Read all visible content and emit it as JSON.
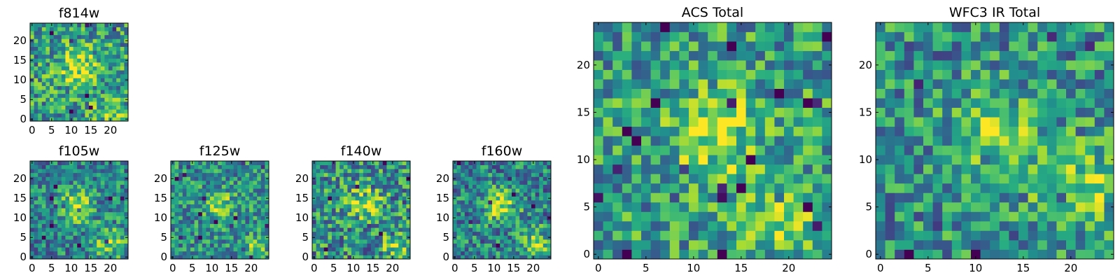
{
  "chart_data": [
    {
      "type": "heatmap",
      "title": "f814w",
      "xticks": [
        "0",
        "5",
        "10",
        "15",
        "20"
      ],
      "yticks": [
        "0",
        "5",
        "10",
        "15",
        "20"
      ],
      "xlim": [
        0,
        24
      ],
      "ylim": [
        0,
        24
      ],
      "grid_size": 25,
      "colormap": "viridis",
      "seed": 11,
      "blobs": [
        {
          "cx": 12,
          "cy": 13,
          "amp": 0.35,
          "s": 3.5
        },
        {
          "cx": 20,
          "cy": 2,
          "amp": 0.25,
          "s": 2.5
        }
      ],
      "base": 0.55,
      "noise": 0.32
    },
    {
      "type": "heatmap",
      "title": "f105w",
      "xticks": [
        "0",
        "5",
        "10",
        "15",
        "20"
      ],
      "yticks": [
        "0",
        "5",
        "10",
        "15",
        "20"
      ],
      "xlim": [
        0,
        24
      ],
      "ylim": [
        0,
        24
      ],
      "grid_size": 25,
      "colormap": "viridis",
      "seed": 23,
      "blobs": [
        {
          "cx": 11,
          "cy": 13,
          "amp": 0.45,
          "s": 3.0
        },
        {
          "cx": 20,
          "cy": 4,
          "amp": 0.35,
          "s": 3.0
        }
      ],
      "base": 0.45,
      "noise": 0.28
    },
    {
      "type": "heatmap",
      "title": "f125w",
      "xticks": [
        "0",
        "5",
        "10",
        "15",
        "20"
      ],
      "yticks": [
        "0",
        "5",
        "10",
        "15",
        "20"
      ],
      "xlim": [
        0,
        24
      ],
      "ylim": [
        0,
        24
      ],
      "grid_size": 25,
      "colormap": "viridis",
      "seed": 37,
      "blobs": [
        {
          "cx": 12,
          "cy": 13,
          "amp": 0.35,
          "s": 2.5
        },
        {
          "cx": 21,
          "cy": 2,
          "amp": 0.3,
          "s": 2.0
        }
      ],
      "base": 0.5,
      "noise": 0.28
    },
    {
      "type": "heatmap",
      "title": "f140w",
      "xticks": [
        "0",
        "5",
        "10",
        "15",
        "20"
      ],
      "yticks": [
        "0",
        "5",
        "10",
        "15",
        "20"
      ],
      "xlim": [
        0,
        24
      ],
      "ylim": [
        0,
        24
      ],
      "grid_size": 25,
      "colormap": "viridis",
      "seed": 41,
      "blobs": [
        {
          "cx": 13,
          "cy": 14,
          "amp": 0.4,
          "s": 2.8
        },
        {
          "cx": 21,
          "cy": 3,
          "amp": 0.3,
          "s": 2.5
        }
      ],
      "base": 0.5,
      "noise": 0.34
    },
    {
      "type": "heatmap",
      "title": "f160w",
      "xticks": [
        "0",
        "5",
        "10",
        "15",
        "20"
      ],
      "yticks": [
        "0",
        "5",
        "10",
        "15",
        "20"
      ],
      "xlim": [
        0,
        24
      ],
      "ylim": [
        0,
        24
      ],
      "grid_size": 25,
      "colormap": "viridis",
      "seed": 53,
      "blobs": [
        {
          "cx": 12,
          "cy": 13,
          "amp": 0.45,
          "s": 3.0
        },
        {
          "cx": 21,
          "cy": 3,
          "amp": 0.35,
          "s": 3.0
        }
      ],
      "base": 0.45,
      "noise": 0.3
    },
    {
      "type": "heatmap",
      "title": "ACS Total",
      "xticks": [
        "0",
        "5",
        "10",
        "15",
        "20"
      ],
      "yticks": [
        "0",
        "5",
        "10",
        "15",
        "20"
      ],
      "xlim": [
        0,
        24
      ],
      "ylim": [
        0,
        24
      ],
      "grid_size": 25,
      "colormap": "viridis",
      "seed": 67,
      "blobs": [
        {
          "cx": 12,
          "cy": 13,
          "amp": 0.4,
          "s": 3.0
        },
        {
          "cx": 19,
          "cy": 4,
          "amp": 0.25,
          "s": 3.0
        }
      ],
      "base": 0.55,
      "noise": 0.3
    },
    {
      "type": "heatmap",
      "title": "WFC3 IR Total",
      "xticks": [
        "0",
        "5",
        "10",
        "15",
        "20"
      ],
      "yticks": [
        "0",
        "5",
        "10",
        "15",
        "20"
      ],
      "xlim": [
        0,
        24
      ],
      "ylim": [
        0,
        24
      ],
      "grid_size": 25,
      "colormap": "viridis",
      "seed": 79,
      "blobs": [
        {
          "cx": 12,
          "cy": 13,
          "amp": 0.35,
          "s": 3.0
        },
        {
          "cx": 21,
          "cy": 7,
          "amp": 0.35,
          "s": 3.0
        }
      ],
      "base": 0.5,
      "noise": 0.3
    }
  ]
}
